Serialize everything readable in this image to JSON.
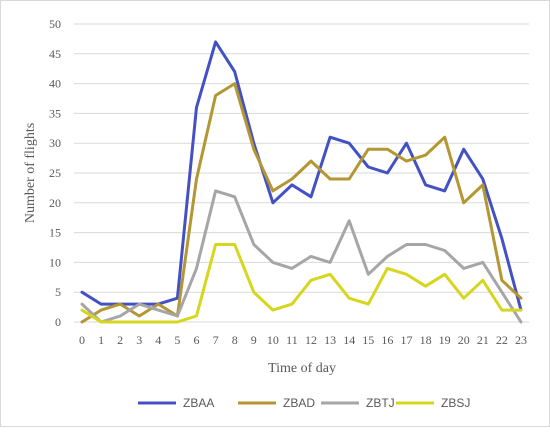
{
  "chart_data": {
    "type": "line",
    "xlabel": "Time of day",
    "ylabel": "Number of flights",
    "ylim": [
      0,
      50
    ],
    "yticks": [
      0,
      5,
      10,
      15,
      20,
      25,
      30,
      35,
      40,
      45,
      50
    ],
    "x": [
      0,
      1,
      2,
      3,
      4,
      5,
      6,
      7,
      8,
      9,
      10,
      11,
      12,
      13,
      14,
      15,
      16,
      17,
      18,
      19,
      20,
      21,
      22,
      23
    ],
    "grid": "horizontal",
    "legend_position": "bottom",
    "series": [
      {
        "name": "ZBAA",
        "color": "#4351c4",
        "values": [
          5,
          3,
          3,
          3,
          3,
          4,
          36,
          47,
          42,
          30,
          20,
          23,
          21,
          31,
          30,
          26,
          25,
          30,
          23,
          22,
          29,
          24,
          14,
          2
        ]
      },
      {
        "name": "ZBAD",
        "color": "#b49632",
        "values": [
          0,
          2,
          3,
          1,
          3,
          1,
          24,
          38,
          40,
          29,
          22,
          24,
          27,
          24,
          24,
          29,
          29,
          27,
          28,
          31,
          20,
          23,
          7,
          4
        ]
      },
      {
        "name": "ZBTJ",
        "color": "#a6a6a6",
        "values": [
          3,
          0,
          1,
          3,
          2,
          1,
          9,
          22,
          21,
          13,
          10,
          9,
          11,
          10,
          17,
          8,
          11,
          13,
          13,
          12,
          9,
          10,
          5,
          0
        ]
      },
      {
        "name": "ZBSJ",
        "color": "#d6d61e",
        "values": [
          2,
          0,
          0,
          0,
          0,
          0,
          1,
          13,
          13,
          5,
          2,
          3,
          7,
          8,
          4,
          3,
          9,
          8,
          6,
          8,
          4,
          7,
          2,
          2
        ]
      }
    ]
  }
}
